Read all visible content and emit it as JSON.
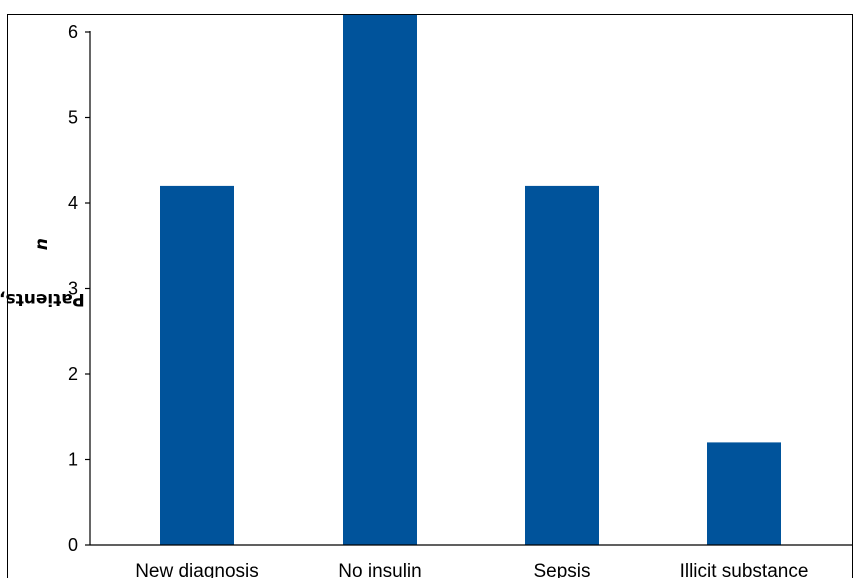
{
  "chart_data": {
    "type": "bar",
    "title": "",
    "xlabel": "",
    "ylabel": "Patients,",
    "ylabel_italic_part": "n",
    "categories": [
      "New diagnosis",
      "No insulin",
      "Sepsis",
      "Illicit substance"
    ],
    "values": [
      4.2,
      6.2,
      4.2,
      1.2
    ],
    "yticks": [
      0,
      1,
      2,
      3,
      4,
      5,
      6
    ],
    "ylim": [
      0,
      6.2
    ],
    "grid": false,
    "legend": "none",
    "bar_color": "#00539b"
  }
}
